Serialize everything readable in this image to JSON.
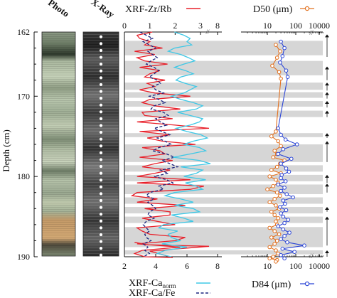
{
  "depth_axis": {
    "label": "Depth (cm)",
    "ticks": [
      "162",
      "170",
      "180",
      "190"
    ]
  },
  "photo_panel": {
    "label": "Photo"
  },
  "xray_panel": {
    "label": "X-Ray"
  },
  "colors": {
    "zrrb": "#e8202a",
    "cafe": "#1a237e",
    "canorm": "#3ec8e6",
    "d50": "#e2701e",
    "d84": "#2b45d6",
    "band": "#d6d6d6"
  },
  "chart_data": [
    {
      "type": "line",
      "panel": "xrf",
      "series": [
        {
          "name": "XRF-Zr/Rb",
          "axis": "top",
          "x": [
            1.1,
            0.5,
            0.6,
            1.0,
            0.8,
            1.5,
            0.4,
            1.2,
            0.5,
            0.8,
            1.7,
            0.6,
            1.4,
            1.0,
            0.8,
            1.6,
            0.9,
            1.2,
            0.6,
            1.2,
            2.6,
            1.0,
            0.7,
            1.2,
            2.2,
            0.7,
            0.8,
            1.9,
            0.5,
            2.0,
            3.5,
            0.6,
            1.8,
            0.9,
            1.5,
            2.8,
            0.7,
            1.4,
            1.6,
            0.6,
            1.9,
            1.2,
            0.7,
            1.8,
            1.2,
            0.5,
            2.6,
            0.5,
            3.2,
            2.6,
            0.5,
            0.3,
            1.3,
            0.5,
            2.4,
            0.8,
            1.8,
            1.8,
            0.7,
            1.3,
            2.0,
            0.5,
            0.7,
            1.0,
            2.4,
            2.0,
            0.5,
            2.2,
            0.7,
            0.4,
            0.8,
            1.9,
            1.0,
            3.5,
            0.9,
            0.4
          ],
          "y": [
            162.0,
            162.4,
            162.8,
            163.2,
            163.6,
            164.0,
            164.4,
            164.8,
            165.2,
            165.6,
            166.0,
            166.4,
            166.8,
            167.2,
            167.6,
            168.0,
            168.4,
            168.8,
            169.2,
            169.6,
            170.0,
            170.4,
            170.8,
            171.2,
            171.6,
            172.0,
            172.4,
            172.8,
            173.2,
            173.6,
            174.0,
            174.4,
            174.8,
            175.2,
            175.6,
            176.0,
            176.4,
            176.8,
            177.2,
            177.6,
            178.0,
            178.4,
            178.8,
            179.2,
            179.6,
            180.0,
            180.4,
            180.8,
            181.2,
            181.6,
            182.0,
            182.4,
            182.8,
            183.2,
            183.6,
            184.0,
            184.4,
            184.8,
            185.2,
            185.6,
            186.0,
            186.4,
            186.8,
            187.2,
            187.6,
            188.0,
            188.4,
            188.8,
            189.2,
            189.6,
            190.0,
            190.1,
            189.3,
            188.7,
            188.5,
            188.2
          ]
        },
        {
          "name": "XRF-Ca/Fe",
          "axis": "bottom",
          "x": [
            3.0,
            3.4,
            3.8,
            3.2,
            3.6,
            4.0,
            3.5,
            3.8,
            4.1,
            3.7,
            3.4,
            3.9,
            4.2,
            3.9,
            3.6,
            4.1,
            4.3,
            3.8,
            4.0,
            4.5,
            3.6,
            4.2,
            4.6,
            3.9,
            3.7,
            4.5,
            4.8,
            4.0,
            4.3,
            4.7,
            3.9,
            4.4,
            4.9,
            4.1,
            4.6,
            5.0,
            4.2,
            3.8,
            4.7,
            5.2,
            4.4,
            4.9,
            5.4,
            4.3,
            4.8,
            3.9,
            4.7,
            5.1,
            4.2,
            4.5,
            3.6,
            3.4,
            3.9,
            3.5,
            3.8,
            4.0,
            3.6,
            3.5,
            3.9,
            3.4,
            3.2,
            3.4,
            3.6,
            3.3,
            3.4,
            3.7,
            3.2,
            3.5,
            3.3,
            3.6,
            3.2
          ],
          "y": [
            162.0,
            162.4,
            162.8,
            163.2,
            163.6,
            164.0,
            164.4,
            164.8,
            165.2,
            165.6,
            166.0,
            166.4,
            166.8,
            167.2,
            167.6,
            168.0,
            168.4,
            168.8,
            169.2,
            169.6,
            170.0,
            170.4,
            170.8,
            171.2,
            171.6,
            172.0,
            172.4,
            172.8,
            173.2,
            173.6,
            174.0,
            174.4,
            174.8,
            175.2,
            175.6,
            176.0,
            176.4,
            176.8,
            177.2,
            177.6,
            178.0,
            178.4,
            178.8,
            179.2,
            179.6,
            180.0,
            180.4,
            180.8,
            181.2,
            181.6,
            182.0,
            182.4,
            182.8,
            183.2,
            183.6,
            184.0,
            184.4,
            184.8,
            185.2,
            185.6,
            186.0,
            186.4,
            186.8,
            187.2,
            187.6,
            188.0,
            188.4,
            188.8,
            189.2,
            189.6,
            190.0
          ]
        },
        {
          "name": "XRF-Ca",
          "name_sub": "norm",
          "axis": "bottom",
          "x": [
            5.2,
            5.8,
            6.2,
            6.0,
            6.3,
            5.2,
            4.8,
            5.6,
            6.1,
            6.5,
            5.8,
            5.2,
            5.9,
            6.4,
            5.6,
            5.3,
            5.9,
            6.6,
            6.2,
            5.8,
            5.0,
            5.6,
            6.4,
            7.0,
            6.6,
            5.4,
            6.2,
            7.0,
            6.8,
            6.2,
            5.3,
            6.0,
            6.9,
            7.3,
            6.4,
            5.8,
            6.8,
            7.2,
            6.2,
            5.1,
            6.8,
            7.5,
            5.6,
            7.0,
            6.6,
            5.8,
            7.2,
            5.9,
            6.6,
            7.0,
            5.2,
            4.6,
            5.6,
            6.4,
            5.2,
            6.4,
            6.8,
            5.0,
            5.8,
            6.4,
            4.5,
            4.2,
            5.4,
            4.8,
            5.0,
            5.6,
            4.4,
            6.0,
            4.6,
            4.1,
            5.0
          ],
          "y": [
            162.0,
            162.4,
            162.8,
            163.2,
            163.6,
            164.0,
            164.4,
            164.8,
            165.2,
            165.6,
            166.0,
            166.4,
            166.8,
            167.2,
            167.6,
            168.0,
            168.4,
            168.8,
            169.2,
            169.6,
            170.0,
            170.4,
            170.8,
            171.2,
            171.6,
            172.0,
            172.4,
            172.8,
            173.2,
            173.6,
            174.0,
            174.4,
            174.8,
            175.2,
            175.6,
            176.0,
            176.4,
            176.8,
            177.2,
            177.6,
            178.0,
            178.4,
            178.8,
            179.2,
            179.6,
            180.0,
            180.4,
            180.8,
            181.2,
            181.6,
            182.0,
            182.4,
            182.8,
            183.2,
            183.6,
            184.0,
            184.4,
            184.8,
            185.2,
            185.6,
            186.0,
            186.4,
            186.8,
            187.2,
            187.6,
            188.0,
            188.4,
            188.8,
            189.2,
            189.6,
            190.0
          ]
        }
      ],
      "top_axis": {
        "ticks": [
          "0",
          "1",
          "2",
          "3",
          "8"
        ],
        "range": [
          0,
          4
        ],
        "break": true
      },
      "bottom_axis": {
        "ticks": [
          "2",
          "4",
          "6",
          "8"
        ],
        "range": [
          2,
          8
        ]
      },
      "ylim": [
        190,
        162
      ],
      "legend": {
        "top": [
          "XRF-Zr/Rb"
        ],
        "bottom": [
          "XRF-Ca",
          "XRF-Ca/Fe"
        ]
      }
    },
    {
      "type": "line",
      "panel": "grain_size",
      "x_scale": "log",
      "series": [
        {
          "name": "D50 (μm)",
          "axis": "top",
          "x": [
            20,
            28,
            22,
            15,
            26,
            30,
            20,
            14,
            24,
            30,
            18,
            22,
            16,
            40,
            28,
            22,
            14,
            30,
            12,
            20,
            24,
            16,
            10,
            22,
            28,
            18,
            12,
            20,
            26,
            14,
            18,
            24,
            20,
            22,
            12,
            18,
            26,
            14,
            22,
            18,
            12,
            20,
            24,
            16,
            12,
            22,
            20
          ],
          "y": [
            163.6,
            164.4,
            165.2,
            166.2,
            167.0,
            167.8,
            174.4,
            175.0,
            175.6,
            176.2,
            176.8,
            177.2,
            177.6,
            178.0,
            178.4,
            178.8,
            179.2,
            179.6,
            180.0,
            180.4,
            180.8,
            181.2,
            181.6,
            182.0,
            182.4,
            182.8,
            183.2,
            183.6,
            184.0,
            184.4,
            184.8,
            185.2,
            185.6,
            186.0,
            186.4,
            186.8,
            187.2,
            187.6,
            188.0,
            188.4,
            188.8,
            189.2,
            189.6,
            190.0,
            190.2,
            190.4,
            190.6
          ]
        },
        {
          "name": "D84 (μm)",
          "axis": "bottom",
          "x": [
            30,
            40,
            34,
            28,
            46,
            52,
            24,
            30,
            44,
            110,
            36,
            24,
            70,
            30,
            46,
            58,
            32,
            30,
            44,
            24,
            40,
            30,
            48,
            80,
            36,
            42,
            28,
            46,
            30,
            36,
            54,
            40,
            24,
            36,
            60,
            40,
            30,
            50,
            200,
            34,
            90,
            30,
            40
          ],
          "y": [
            163.2,
            164.0,
            165.0,
            165.8,
            166.8,
            167.6,
            174.0,
            174.8,
            175.4,
            176.0,
            176.6,
            177.2,
            177.8,
            178.4,
            179.0,
            179.4,
            179.8,
            180.2,
            180.6,
            181.0,
            181.4,
            181.8,
            182.2,
            182.6,
            183.0,
            183.4,
            183.8,
            184.2,
            184.6,
            185.0,
            185.4,
            185.8,
            186.2,
            186.6,
            187.0,
            187.4,
            187.8,
            188.2,
            188.6,
            189.0,
            189.4,
            189.8,
            190.2
          ]
        }
      ],
      "top_axis": {
        "ticks": [
          "10",
          "100",
          "10000"
        ],
        "range": [
          1,
          1000
        ],
        "break": true
      },
      "bottom_axis": {
        "ticks": [
          "10",
          "100",
          "10000"
        ],
        "range": [
          1,
          1000
        ],
        "break": true
      },
      "ylim": [
        190,
        162
      ],
      "legend": {
        "top": [
          "D50 (μm)"
        ],
        "bottom": [
          "D84 (μm)"
        ]
      }
    }
  ],
  "gray_bands": [
    [
      163.1,
      164.9
    ],
    [
      165.6,
      167.4
    ],
    [
      168.3,
      169.2
    ],
    [
      169.5,
      170.2
    ],
    [
      170.6,
      171.3
    ],
    [
      171.8,
      172.6
    ],
    [
      174.6,
      175.1
    ],
    [
      176.0,
      178.2
    ],
    [
      178.6,
      179.4
    ],
    [
      179.8,
      180.6
    ],
    [
      181.0,
      182.2
    ],
    [
      182.6,
      183.4
    ],
    [
      183.8,
      184.6
    ],
    [
      185.0,
      185.8
    ],
    [
      186.3,
      188.8
    ],
    [
      189.2,
      189.7
    ]
  ],
  "band_arrows": [
    {
      "y1": 162.3,
      "y2": 165.1,
      "dir": "up"
    },
    {
      "y1": 166.3,
      "y2": 168.0,
      "dir": "up"
    },
    {
      "y1": 168.3,
      "y2": 169.3,
      "dir": "up"
    },
    {
      "y1": 169.5,
      "y2": 170.3,
      "dir": "up"
    },
    {
      "y1": 170.6,
      "y2": 171.4,
      "dir": "up"
    },
    {
      "y1": 171.8,
      "y2": 172.6,
      "dir": "up"
    },
    {
      "y1": 174.6,
      "y2": 175.2,
      "dir": "up"
    },
    {
      "y1": 175.6,
      "y2": 178.2,
      "dir": "up"
    },
    {
      "y1": 179.8,
      "y2": 180.8,
      "dir": "up"
    },
    {
      "y1": 180.9,
      "y2": 182.0,
      "dir": "up"
    },
    {
      "y1": 183.8,
      "y2": 184.4,
      "dir": "up"
    },
    {
      "y1": 185.0,
      "y2": 188.6,
      "dir": "up"
    },
    {
      "y1": 189.2,
      "y2": 190.0,
      "dir": "up"
    }
  ]
}
